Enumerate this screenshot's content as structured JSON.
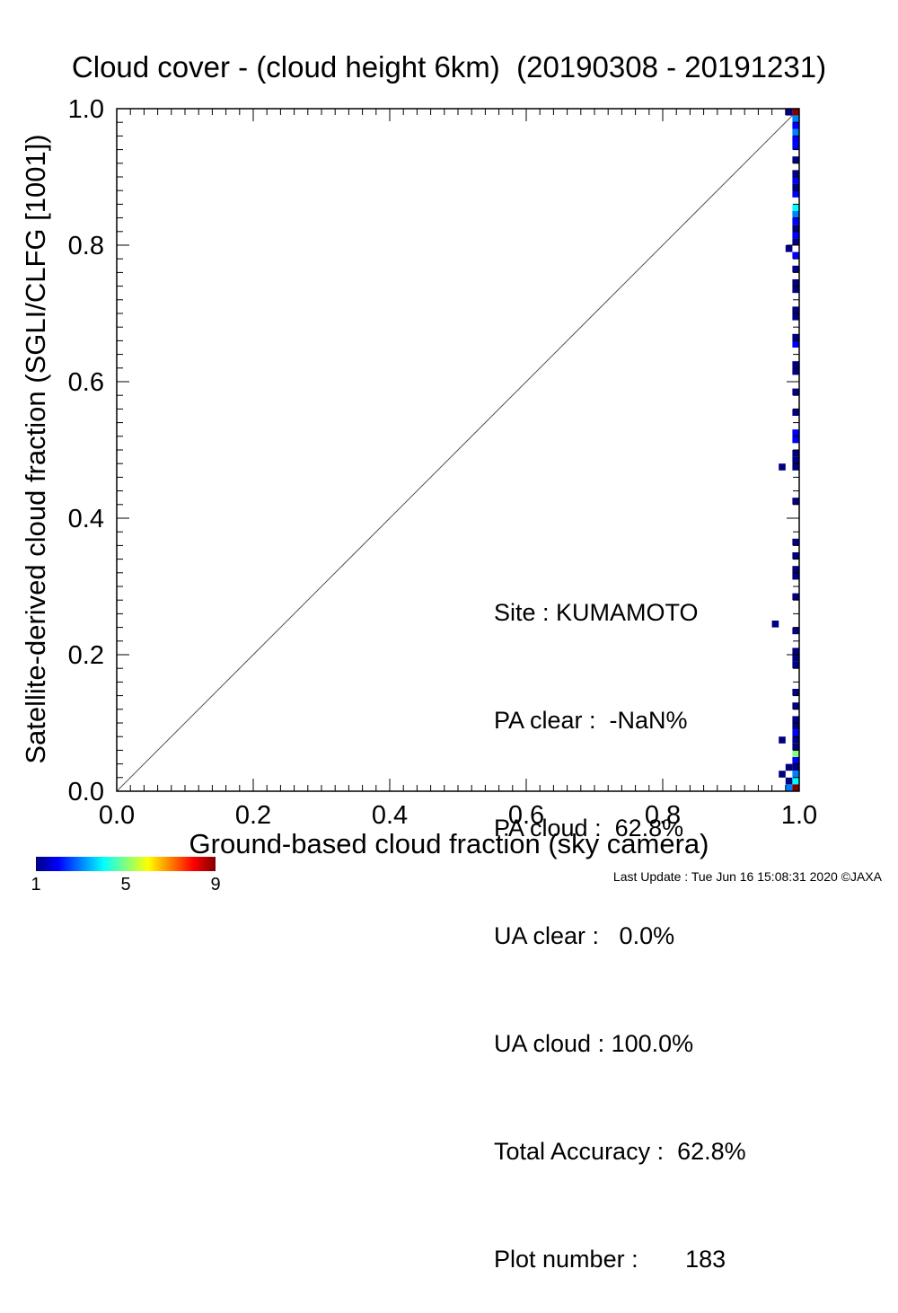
{
  "chart_data": {
    "type": "heatmap",
    "title": "Cloud cover - (cloud height 6km)  (20190308 - 20191231)",
    "xlabel": "Ground-based cloud fraction (sky camera)",
    "ylabel": "Satellite-derived cloud fraction (SGLI/CLFG [1001])",
    "xlim": [
      0.0,
      1.0
    ],
    "ylim": [
      0.0,
      1.0
    ],
    "x_ticks": [
      "0.0",
      "0.2",
      "0.4",
      "0.6",
      "0.8",
      "1.0"
    ],
    "y_ticks": [
      "0.0",
      "0.2",
      "0.4",
      "0.6",
      "0.8",
      "1.0"
    ],
    "diagonal_line": true,
    "grid": false,
    "bin_size": 0.01,
    "cells": [
      {
        "x": 0.995,
        "y": 0.995,
        "count": 9
      },
      {
        "x": 0.985,
        "y": 0.995,
        "count": 1
      },
      {
        "x": 0.995,
        "y": 0.985,
        "count": 3
      },
      {
        "x": 0.995,
        "y": 0.975,
        "count": 2
      },
      {
        "x": 0.995,
        "y": 0.965,
        "count": 3
      },
      {
        "x": 0.995,
        "y": 0.955,
        "count": 2
      },
      {
        "x": 0.995,
        "y": 0.945,
        "count": 2
      },
      {
        "x": 0.995,
        "y": 0.925,
        "count": 1
      },
      {
        "x": 0.995,
        "y": 0.905,
        "count": 1
      },
      {
        "x": 0.995,
        "y": 0.895,
        "count": 2
      },
      {
        "x": 0.995,
        "y": 0.885,
        "count": 1
      },
      {
        "x": 0.995,
        "y": 0.875,
        "count": 2
      },
      {
        "x": 0.995,
        "y": 0.855,
        "count": 4
      },
      {
        "x": 0.995,
        "y": 0.845,
        "count": 3
      },
      {
        "x": 0.995,
        "y": 0.835,
        "count": 2
      },
      {
        "x": 0.995,
        "y": 0.825,
        "count": 1
      },
      {
        "x": 0.995,
        "y": 0.815,
        "count": 2
      },
      {
        "x": 0.995,
        "y": 0.805,
        "count": 1
      },
      {
        "x": 0.985,
        "y": 0.795,
        "count": 1
      },
      {
        "x": 0.995,
        "y": 0.785,
        "count": 2
      },
      {
        "x": 0.995,
        "y": 0.765,
        "count": 1
      },
      {
        "x": 0.995,
        "y": 0.745,
        "count": 1
      },
      {
        "x": 0.995,
        "y": 0.735,
        "count": 1
      },
      {
        "x": 0.995,
        "y": 0.705,
        "count": 1
      },
      {
        "x": 0.995,
        "y": 0.695,
        "count": 1
      },
      {
        "x": 0.995,
        "y": 0.665,
        "count": 1
      },
      {
        "x": 0.995,
        "y": 0.655,
        "count": 2
      },
      {
        "x": 0.995,
        "y": 0.625,
        "count": 1
      },
      {
        "x": 0.995,
        "y": 0.615,
        "count": 1
      },
      {
        "x": 0.995,
        "y": 0.585,
        "count": 1
      },
      {
        "x": 0.995,
        "y": 0.555,
        "count": 1
      },
      {
        "x": 0.995,
        "y": 0.525,
        "count": 2
      },
      {
        "x": 0.995,
        "y": 0.515,
        "count": 2
      },
      {
        "x": 0.995,
        "y": 0.495,
        "count": 1
      },
      {
        "x": 0.995,
        "y": 0.485,
        "count": 1
      },
      {
        "x": 0.975,
        "y": 0.475,
        "count": 1
      },
      {
        "x": 0.995,
        "y": 0.475,
        "count": 1
      },
      {
        "x": 0.995,
        "y": 0.425,
        "count": 1
      },
      {
        "x": 0.995,
        "y": 0.365,
        "count": 1
      },
      {
        "x": 0.995,
        "y": 0.345,
        "count": 1
      },
      {
        "x": 0.995,
        "y": 0.325,
        "count": 1
      },
      {
        "x": 0.995,
        "y": 0.315,
        "count": 1
      },
      {
        "x": 0.995,
        "y": 0.285,
        "count": 1
      },
      {
        "x": 0.965,
        "y": 0.245,
        "count": 1
      },
      {
        "x": 0.995,
        "y": 0.235,
        "count": 1
      },
      {
        "x": 0.995,
        "y": 0.205,
        "count": 1
      },
      {
        "x": 0.995,
        "y": 0.195,
        "count": 1
      },
      {
        "x": 0.995,
        "y": 0.185,
        "count": 1
      },
      {
        "x": 0.995,
        "y": 0.145,
        "count": 1
      },
      {
        "x": 0.995,
        "y": 0.125,
        "count": 1
      },
      {
        "x": 0.995,
        "y": 0.105,
        "count": 1
      },
      {
        "x": 0.995,
        "y": 0.095,
        "count": 1
      },
      {
        "x": 0.995,
        "y": 0.085,
        "count": 2
      },
      {
        "x": 0.975,
        "y": 0.075,
        "count": 1
      },
      {
        "x": 0.995,
        "y": 0.075,
        "count": 1
      },
      {
        "x": 0.995,
        "y": 0.065,
        "count": 1
      },
      {
        "x": 0.995,
        "y": 0.055,
        "count": 5
      },
      {
        "x": 0.995,
        "y": 0.045,
        "count": 2
      },
      {
        "x": 0.985,
        "y": 0.035,
        "count": 1
      },
      {
        "x": 0.995,
        "y": 0.035,
        "count": 1
      },
      {
        "x": 0.975,
        "y": 0.025,
        "count": 1
      },
      {
        "x": 0.995,
        "y": 0.025,
        "count": 3
      },
      {
        "x": 0.985,
        "y": 0.015,
        "count": 1
      },
      {
        "x": 0.995,
        "y": 0.015,
        "count": 4
      },
      {
        "x": 0.985,
        "y": 0.005,
        "count": 3
      },
      {
        "x": 0.995,
        "y": 0.005,
        "count": 9
      }
    ],
    "colorbar": {
      "min": 1,
      "max": 9,
      "tick_labels": [
        "1",
        "5",
        "9"
      ],
      "colors": [
        "#000080",
        "#0000ff",
        "#0080ff",
        "#00ffff",
        "#80ff80",
        "#ffff00",
        "#ff8000",
        "#ff0000",
        "#800000"
      ]
    }
  },
  "stats": {
    "site": "Site : KUMAMOTO",
    "pa_clear": "PA clear :  -NaN%",
    "pa_cloud": "PA cloud :  62.8%",
    "ua_clear": "UA clear :   0.0%",
    "ua_cloud": "UA cloud : 100.0%",
    "total_accuracy": "Total Accuracy :  62.8%",
    "plot_number": "Plot number :       183"
  },
  "footer": "Last Update : Tue Jun 16 15:08:31 2020  ©JAXA"
}
